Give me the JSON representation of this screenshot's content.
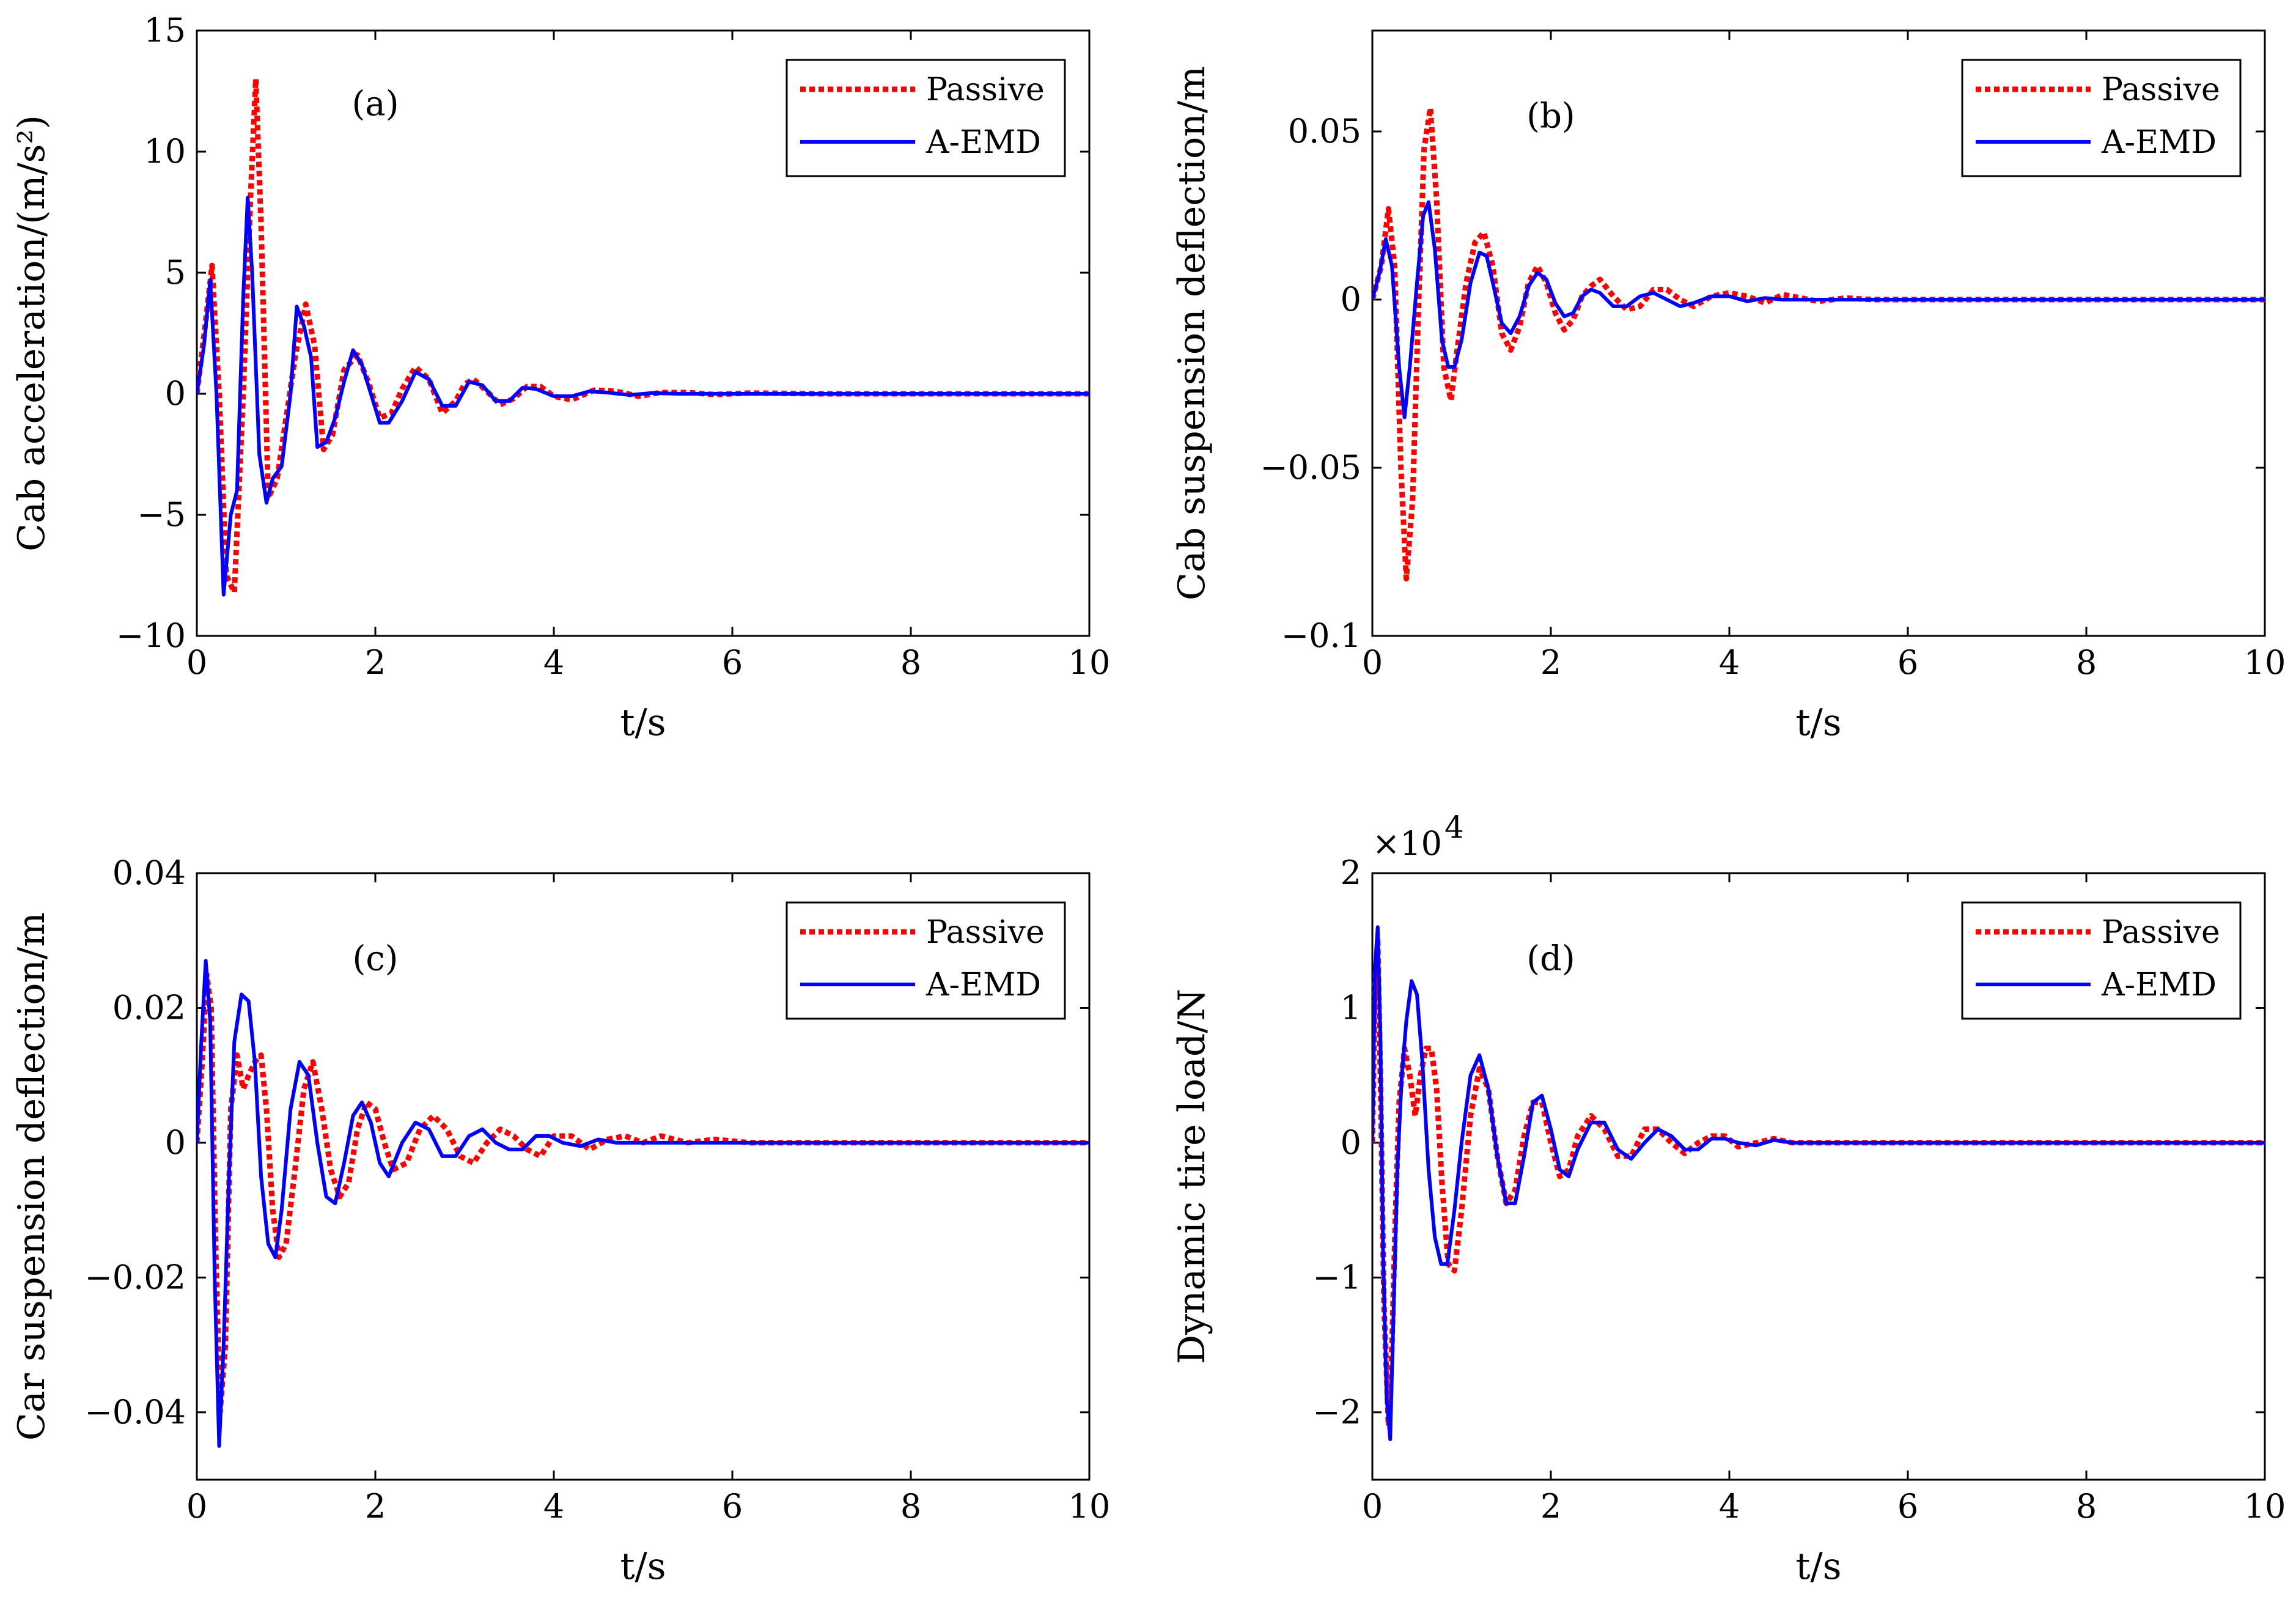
{
  "chart_data": [
    {
      "id": "a",
      "type": "line",
      "panel_label": "(a)",
      "xlabel": "t/s",
      "ylabel": "Cab acceleration/(m/s²)",
      "xlim": [
        0,
        10
      ],
      "ylim": [
        -10,
        15
      ],
      "xticks": [
        0,
        2,
        4,
        6,
        8,
        10
      ],
      "yticks": [
        -10,
        -5,
        0,
        5,
        10,
        15
      ],
      "ytick_labels": [
        "−10",
        "−5",
        "0",
        "5",
        "10",
        "15"
      ],
      "legend": {
        "position": "top-right"
      },
      "series": [
        {
          "name": "Passive",
          "color": "#ff0000",
          "style": "dotted",
          "x": [
            0,
            0.1,
            0.17,
            0.25,
            0.33,
            0.42,
            0.52,
            0.6,
            0.66,
            0.72,
            0.8,
            0.9,
            1.0,
            1.1,
            1.22,
            1.32,
            1.42,
            1.52,
            1.65,
            1.8,
            1.92,
            2.05,
            2.18,
            2.3,
            2.45,
            2.6,
            2.75,
            2.9,
            3.0,
            3.1,
            3.25,
            3.4,
            3.55,
            3.7,
            3.85,
            4.0,
            4.2,
            4.45,
            4.7,
            4.95,
            5.2,
            5.5,
            5.8,
            6.2,
            7,
            8,
            9,
            10
          ],
          "y": [
            0,
            3,
            5.3,
            0,
            -7.5,
            -8.2,
            0,
            8,
            13,
            7,
            -4.3,
            -3.5,
            -1,
            1.5,
            3.7,
            2,
            -2.3,
            -1.7,
            1,
            1.6,
            0.5,
            -1,
            -0.8,
            0.2,
            1.1,
            0.6,
            -0.8,
            -0.3,
            0.4,
            0.6,
            0.1,
            -0.45,
            -0.2,
            0.3,
            0.3,
            -0.1,
            -0.25,
            0.15,
            0.1,
            -0.1,
            0.05,
            0.05,
            -0.03,
            0.03,
            0,
            0,
            0,
            0
          ]
        },
        {
          "name": "A-EMD",
          "color": "#0000ff",
          "style": "solid",
          "x": [
            0,
            0.08,
            0.15,
            0.22,
            0.3,
            0.38,
            0.45,
            0.52,
            0.57,
            0.62,
            0.7,
            0.78,
            0.85,
            0.95,
            1.05,
            1.12,
            1.2,
            1.28,
            1.35,
            1.45,
            1.55,
            1.65,
            1.75,
            1.85,
            1.95,
            2.05,
            2.15,
            2.3,
            2.45,
            2.6,
            2.75,
            2.9,
            3.05,
            3.2,
            3.35,
            3.5,
            3.65,
            3.8,
            4.0,
            4.2,
            4.4,
            4.6,
            4.85,
            5.1,
            5.4,
            5.7,
            6.0,
            6.5,
            7,
            8,
            9,
            10
          ],
          "y": [
            0,
            2,
            4.7,
            0,
            -8.3,
            -5,
            -4,
            4,
            8.1,
            5,
            -2.5,
            -4.5,
            -3.5,
            -3,
            0,
            3.6,
            2.8,
            1.5,
            -2.2,
            -2,
            -1,
            0.5,
            1.8,
            1.2,
            0,
            -1.2,
            -1.2,
            -0.3,
            0.9,
            0.6,
            -0.5,
            -0.5,
            0.5,
            0.35,
            -0.3,
            -0.3,
            0.25,
            0.2,
            -0.1,
            -0.1,
            0.1,
            0.05,
            -0.05,
            0.03,
            0,
            0,
            0,
            0,
            0,
            0,
            0,
            0
          ]
        }
      ]
    },
    {
      "id": "b",
      "type": "line",
      "panel_label": "(b)",
      "xlabel": "t/s",
      "ylabel": "Cab suspension deflection/m",
      "xlim": [
        0,
        10
      ],
      "ylim": [
        -0.1,
        0.08
      ],
      "xticks": [
        0,
        2,
        4,
        6,
        8,
        10
      ],
      "yticks": [
        -0.1,
        -0.05,
        0,
        0.05
      ],
      "ytick_labels": [
        "−0.1",
        "−0.05",
        "0",
        "0.05"
      ],
      "legend": {
        "position": "top-right"
      },
      "series": [
        {
          "name": "Passive",
          "color": "#ff0000",
          "style": "dotted",
          "x": [
            0,
            0.1,
            0.18,
            0.25,
            0.32,
            0.38,
            0.45,
            0.52,
            0.58,
            0.65,
            0.72,
            0.8,
            0.88,
            0.95,
            1.05,
            1.15,
            1.25,
            1.35,
            1.45,
            1.55,
            1.65,
            1.75,
            1.85,
            1.95,
            2.05,
            2.15,
            2.25,
            2.35,
            2.45,
            2.55,
            2.7,
            2.85,
            3.0,
            3.15,
            3.3,
            3.45,
            3.6,
            3.8,
            4.0,
            4.2,
            4.4,
            4.6,
            4.8,
            5.0,
            5.3,
            5.6,
            6.0,
            7,
            8,
            9,
            10
          ],
          "y": [
            0,
            0.01,
            0.027,
            0.01,
            -0.05,
            -0.083,
            -0.06,
            0,
            0.045,
            0.057,
            0.03,
            -0.02,
            -0.03,
            -0.015,
            0.005,
            0.017,
            0.02,
            0.01,
            -0.01,
            -0.015,
            -0.008,
            0.005,
            0.01,
            0.005,
            -0.004,
            -0.009,
            -0.006,
            0.001,
            0.004,
            0.006,
            0.001,
            -0.003,
            -0.002,
            0.003,
            0.003,
            0,
            -0.002,
            0.001,
            0.002,
            0.001,
            -0.001,
            0.0015,
            0.0005,
            -0.0005,
            0.0005,
            0,
            0,
            0,
            0,
            0,
            0
          ]
        },
        {
          "name": "A-EMD",
          "color": "#0000ff",
          "style": "solid",
          "x": [
            0,
            0.08,
            0.15,
            0.22,
            0.3,
            0.36,
            0.42,
            0.5,
            0.57,
            0.63,
            0.7,
            0.78,
            0.85,
            0.92,
            1.0,
            1.1,
            1.2,
            1.28,
            1.35,
            1.45,
            1.55,
            1.65,
            1.75,
            1.85,
            1.95,
            2.05,
            2.15,
            2.25,
            2.35,
            2.45,
            2.55,
            2.7,
            2.85,
            3.0,
            3.15,
            3.3,
            3.45,
            3.6,
            3.8,
            4.0,
            4.2,
            4.4,
            4.6,
            4.8,
            5.0,
            5.4,
            5.8,
            6.2,
            7,
            8,
            9,
            10
          ],
          "y": [
            0,
            0.008,
            0.018,
            0.01,
            -0.02,
            -0.035,
            -0.02,
            0.005,
            0.025,
            0.029,
            0.015,
            -0.012,
            -0.02,
            -0.02,
            -0.012,
            0.005,
            0.014,
            0.013,
            0.005,
            -0.007,
            -0.01,
            -0.005,
            0.004,
            0.008,
            0.006,
            -0.001,
            -0.005,
            -0.004,
            0.001,
            0.003,
            0.002,
            -0.002,
            -0.002,
            0.001,
            0.002,
            0,
            -0.002,
            -0.001,
            0.001,
            0.001,
            -0.0005,
            0.0005,
            0,
            0,
            0,
            0,
            0,
            0,
            0,
            0,
            0,
            0
          ]
        }
      ]
    },
    {
      "id": "c",
      "type": "line",
      "panel_label": "(c)",
      "xlabel": "t/s",
      "ylabel": "Car suspension deflection/m",
      "xlim": [
        0,
        10
      ],
      "ylim": [
        -0.05,
        0.04
      ],
      "xticks": [
        0,
        2,
        4,
        6,
        8,
        10
      ],
      "yticks": [
        -0.04,
        -0.02,
        0,
        0.02,
        0.04
      ],
      "ytick_labels": [
        "−0.04",
        "−0.02",
        "0",
        "0.02",
        "0.04"
      ],
      "legend": {
        "position": "top-right"
      },
      "series": [
        {
          "name": "Passive",
          "color": "#ff0000",
          "style": "dotted",
          "x": [
            0,
            0.06,
            0.11,
            0.16,
            0.21,
            0.26,
            0.32,
            0.38,
            0.45,
            0.52,
            0.58,
            0.65,
            0.72,
            0.78,
            0.85,
            0.92,
            1.0,
            1.1,
            1.2,
            1.3,
            1.4,
            1.5,
            1.6,
            1.7,
            1.8,
            1.9,
            2.0,
            2.1,
            2.2,
            2.35,
            2.5,
            2.65,
            2.8,
            2.95,
            3.1,
            3.25,
            3.4,
            3.55,
            3.7,
            3.85,
            4.0,
            4.2,
            4.4,
            4.6,
            4.8,
            5.0,
            5.2,
            5.5,
            5.8,
            6.2,
            7,
            8,
            9,
            10
          ],
          "y": [
            0,
            0.012,
            0.025,
            0.02,
            -0.015,
            -0.04,
            -0.03,
            0.005,
            0.013,
            0.008,
            0.01,
            0.012,
            0.013,
            0.005,
            -0.01,
            -0.017,
            -0.015,
            -0.004,
            0.008,
            0.012,
            0.005,
            -0.004,
            -0.008,
            -0.006,
            0.002,
            0.006,
            0.005,
            0,
            -0.004,
            -0.003,
            0.002,
            0.004,
            0.002,
            -0.002,
            -0.003,
            0,
            0.002,
            0.001,
            -0.001,
            -0.002,
            0.001,
            0.001,
            -0.001,
            0.0005,
            0.001,
            0,
            0.001,
            0,
            0.0005,
            0,
            0,
            0,
            0,
            0
          ]
        },
        {
          "name": "A-EMD",
          "color": "#0000ff",
          "style": "solid",
          "x": [
            0,
            0.05,
            0.1,
            0.15,
            0.2,
            0.25,
            0.3,
            0.36,
            0.42,
            0.5,
            0.58,
            0.65,
            0.72,
            0.8,
            0.88,
            0.95,
            1.05,
            1.15,
            1.25,
            1.35,
            1.45,
            1.55,
            1.65,
            1.75,
            1.85,
            1.95,
            2.05,
            2.15,
            2.3,
            2.45,
            2.6,
            2.75,
            2.9,
            3.05,
            3.2,
            3.35,
            3.5,
            3.65,
            3.8,
            3.95,
            4.1,
            4.3,
            4.5,
            4.7,
            4.9,
            5.2,
            5.5,
            5.8,
            6.2,
            7,
            8,
            9,
            10
          ],
          "y": [
            0,
            0.015,
            0.027,
            0.018,
            -0.02,
            -0.045,
            -0.03,
            -0.005,
            0.015,
            0.022,
            0.021,
            0.012,
            -0.005,
            -0.015,
            -0.017,
            -0.01,
            0.005,
            0.012,
            0.01,
            0,
            -0.008,
            -0.009,
            -0.003,
            0.004,
            0.006,
            0.003,
            -0.003,
            -0.005,
            0,
            0.003,
            0.002,
            -0.002,
            -0.002,
            0.001,
            0.002,
            0,
            -0.001,
            -0.001,
            0.001,
            0.001,
            0,
            -0.0005,
            0.0005,
            0,
            0,
            0,
            0,
            0,
            0,
            0,
            0,
            0,
            0
          ]
        }
      ]
    },
    {
      "id": "d",
      "type": "line",
      "panel_label": "(d)",
      "xlabel": "t/s",
      "ylabel": "Dynamic tire load/N",
      "multiplier_base": "×10",
      "multiplier_exp": "4",
      "xlim": [
        0,
        10
      ],
      "ylim": [
        -2.5,
        2
      ],
      "xticks": [
        0,
        2,
        4,
        6,
        8,
        10
      ],
      "yticks": [
        -2,
        -1,
        0,
        1,
        2
      ],
      "ytick_labels": [
        "−2",
        "−1",
        "0",
        "1",
        "2"
      ],
      "legend": {
        "position": "top-right"
      },
      "series": [
        {
          "name": "Passive",
          "color": "#ff0000",
          "style": "dotted",
          "x": [
            0,
            0.03,
            0.06,
            0.09,
            0.13,
            0.18,
            0.22,
            0.26,
            0.3,
            0.36,
            0.42,
            0.48,
            0.54,
            0.6,
            0.66,
            0.72,
            0.78,
            0.85,
            0.92,
            1.0,
            1.1,
            1.2,
            1.3,
            1.4,
            1.5,
            1.6,
            1.7,
            1.8,
            1.9,
            2.0,
            2.1,
            2.2,
            2.3,
            2.45,
            2.6,
            2.75,
            2.9,
            3.05,
            3.2,
            3.35,
            3.5,
            3.65,
            3.8,
            3.95,
            4.1,
            4.3,
            4.5,
            4.7,
            4.9,
            5.1,
            5.4,
            5.7,
            6.0,
            7,
            8,
            9,
            10
          ],
          "y": [
            0,
            1.2,
            1.5,
            0.5,
            -1.2,
            -2.1,
            -1.5,
            -0.5,
            0.3,
            0.7,
            0.5,
            0.2,
            0.5,
            0.7,
            0.7,
            0.4,
            -0.3,
            -0.9,
            -0.95,
            -0.5,
            0.2,
            0.55,
            0.4,
            -0.1,
            -0.45,
            -0.35,
            0.05,
            0.3,
            0.3,
            0,
            -0.25,
            -0.2,
            0.05,
            0.2,
            0.1,
            -0.1,
            -0.1,
            0.1,
            0.1,
            0,
            -0.08,
            0,
            0.05,
            0.05,
            -0.03,
            0,
            0.03,
            0,
            0,
            0,
            0,
            0,
            0,
            0,
            0,
            0,
            0
          ]
        },
        {
          "name": "A-EMD",
          "color": "#0000ff",
          "style": "solid",
          "x": [
            0,
            0.03,
            0.06,
            0.09,
            0.12,
            0.16,
            0.2,
            0.24,
            0.28,
            0.33,
            0.38,
            0.44,
            0.5,
            0.56,
            0.63,
            0.7,
            0.77,
            0.84,
            0.92,
            1.0,
            1.1,
            1.2,
            1.3,
            1.4,
            1.5,
            1.6,
            1.7,
            1.8,
            1.9,
            2.0,
            2.1,
            2.2,
            2.3,
            2.45,
            2.6,
            2.75,
            2.9,
            3.05,
            3.2,
            3.35,
            3.5,
            3.65,
            3.8,
            3.95,
            4.1,
            4.3,
            4.5,
            4.7,
            4.9,
            5.2,
            5.5,
            6.0,
            7,
            8,
            9,
            10
          ],
          "y": [
            0,
            1.3,
            1.6,
            0.8,
            -0.8,
            -1.9,
            -2.2,
            -1.2,
            -0.2,
            0.5,
            0.9,
            1.2,
            1.1,
            0.6,
            -0.2,
            -0.7,
            -0.9,
            -0.9,
            -0.5,
            0,
            0.5,
            0.65,
            0.4,
            -0.1,
            -0.45,
            -0.45,
            -0.1,
            0.3,
            0.35,
            0.1,
            -0.2,
            -0.25,
            -0.05,
            0.15,
            0.15,
            -0.05,
            -0.12,
            0,
            0.1,
            0.05,
            -0.05,
            -0.05,
            0.03,
            0.03,
            0,
            -0.02,
            0.02,
            0,
            0,
            0,
            0,
            0,
            0,
            0,
            0,
            0
          ]
        }
      ]
    }
  ]
}
